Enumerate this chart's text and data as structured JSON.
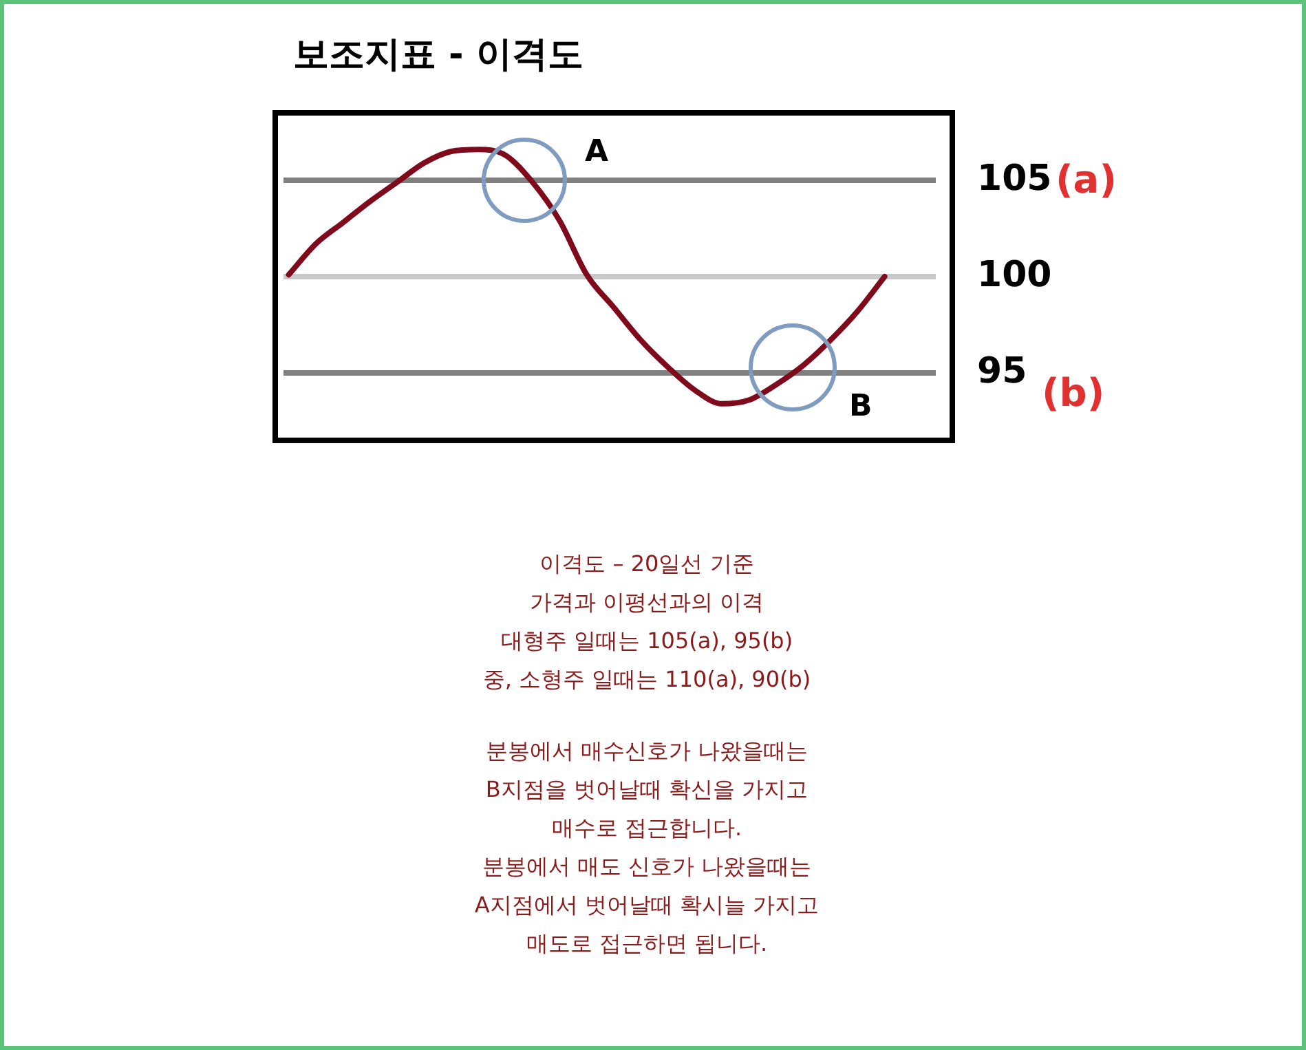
{
  "chart_data": {
    "type": "line",
    "title": "보조지표 - 이격도",
    "categories": [
      null,
      null,
      null,
      null,
      null,
      null,
      null,
      null,
      null,
      null,
      null,
      null,
      null,
      null,
      null,
      null,
      null,
      null,
      null,
      null,
      null,
      null,
      null,
      null,
      null
    ],
    "series": [
      {
        "color": "#7f0a1c",
        "values": [
          100.1,
          101.7,
          102.8,
          103.9,
          104.9,
          105.9,
          106.5,
          106.6,
          106.3,
          104.9,
          102.9,
          100.1,
          98.4,
          96.7,
          95.3,
          94.1,
          93.4,
          93.6,
          94.4,
          95.4,
          96.7,
          98.2,
          100.0,
          null,
          null
        ]
      }
    ],
    "ylim": [
      91.5,
      108.5
    ],
    "yticks": [
      95,
      100,
      105
    ],
    "tick_labels": "y",
    "legend": false,
    "marker": "none",
    "line_style": "solid",
    "ref_lines": [
      {
        "axis": "y",
        "value": 105,
        "color": "#808080"
      },
      {
        "axis": "y",
        "value": 100,
        "color": "#c8c8c8"
      },
      {
        "axis": "y",
        "value": 95,
        "color": "#808080"
      }
    ],
    "annotations": [
      "A",
      "B",
      "이격도 – 20일선 기준",
      "가격과 이평선과의 이격",
      "대형주 일때는 105(a), 95(b)",
      "중, 소형주 일때는 110(a), 90(b)",
      "분봉에서 매수신호가 나왔을때는",
      "B지점을 벗어날때 확신을 가지고",
      "매수로 접근합니다.",
      "분봉에서 매도 신호가 나왔을때는",
      "A지점에서 벗어날때 확시늘 가지고",
      "매도로 접근하면 됩니다.",
      "(a)",
      "(b)"
    ]
  }
}
